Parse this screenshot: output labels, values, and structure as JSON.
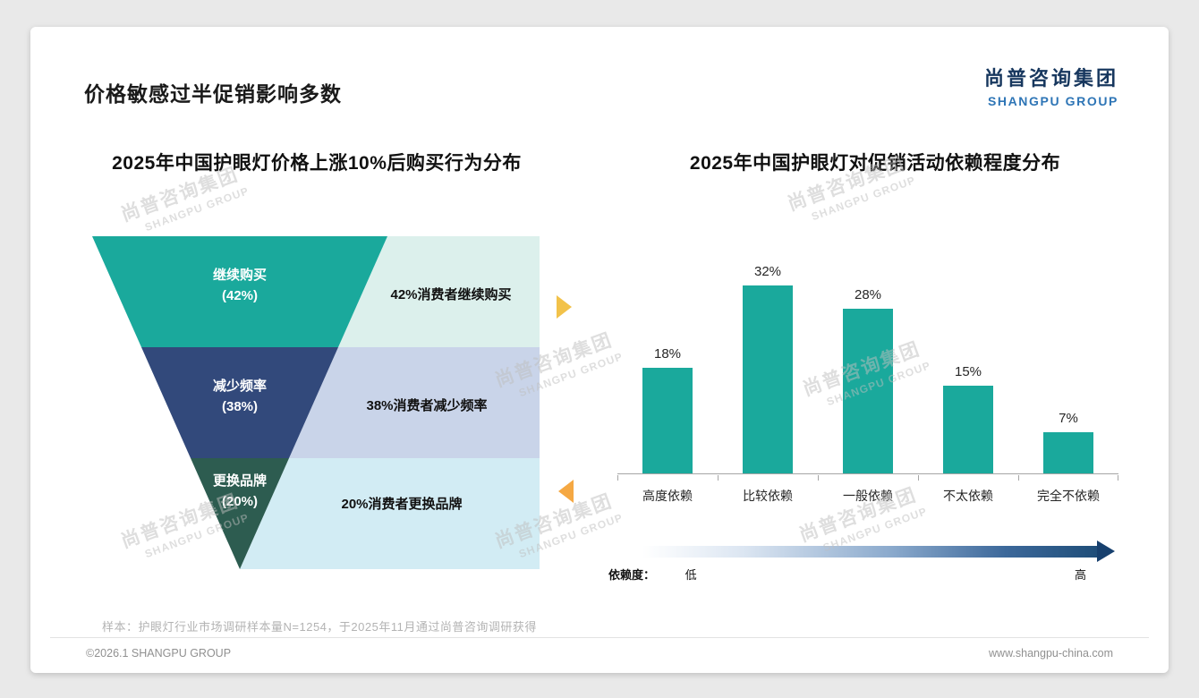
{
  "header": {
    "title": "价格敏感过半促销影响多数",
    "logo_cn": "尚普咨询集团",
    "logo_en": "SHANGPU GROUP"
  },
  "watermark": {
    "cn": "尚普咨询集团",
    "en": "SHANGPU GROUP"
  },
  "chart_data": [
    {
      "type": "funnel",
      "title": "2025年中国护眼灯价格上涨10%后购买行为分布",
      "categories": [
        "继续购买",
        "减少频率",
        "更换品牌"
      ],
      "values": [
        42,
        38,
        20
      ],
      "value_labels": [
        "(42%)",
        "(38%)",
        "(20%)"
      ],
      "annotations": [
        "42%消费者继续购买",
        "38%消费者减少频率",
        "20%消费者更换品牌"
      ],
      "segment_colors": [
        "#1aa99c",
        "#32497b",
        "#2d5c50"
      ],
      "annotation_bg": [
        "#dcf0ec",
        "#c9d4e9",
        "#d2ecf4"
      ],
      "arrow_colors": {
        "right": "#f2c24a",
        "left": "#f5a843"
      }
    },
    {
      "type": "bar",
      "title": "2025年中国护眼灯对促销活动依赖程度分布",
      "categories": [
        "高度依赖",
        "比较依赖",
        "一般依赖",
        "不太依赖",
        "完全不依赖"
      ],
      "values": [
        18,
        32,
        28,
        15,
        7
      ],
      "value_labels": [
        "18%",
        "32%",
        "28%",
        "15%",
        "7%"
      ],
      "ylim": [
        0,
        35
      ],
      "bar_color": "#1aa99c",
      "legend": {
        "label": "依赖度：",
        "low": "低",
        "high": "高"
      },
      "gradient_dark": "#1f4e79"
    }
  ],
  "footnote": "样本：护眼灯行业市场调研样本量N=1254，于2025年11月通过尚普咨询调研获得",
  "footer": {
    "left": "©2026.1 SHANGPU GROUP",
    "right": "www.shangpu-china.com"
  }
}
